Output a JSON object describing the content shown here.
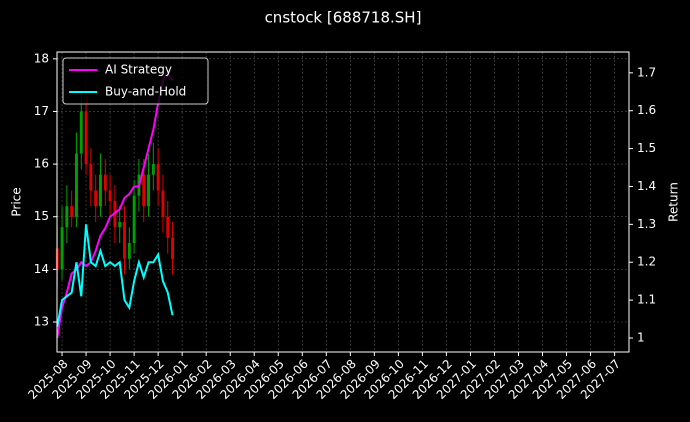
{
  "chart_data": {
    "type": "candlestick",
    "title": "cnstock [688718.SH]",
    "ylabel": "Price",
    "y2label": "Return",
    "x": [
      -0.2,
      0.0,
      0.2,
      0.4,
      0.6,
      0.8,
      1.0,
      1.2,
      1.4,
      1.6,
      1.8,
      2.0,
      2.2,
      2.4,
      2.6,
      2.8,
      3.0,
      3.2,
      3.4,
      3.6,
      3.8,
      4.0,
      4.2,
      4.4,
      4.6
    ],
    "open": [
      14.4,
      14.0,
      14.8,
      15.2,
      15.0,
      16.2,
      17.0,
      16.0,
      15.5,
      15.2,
      15.8,
      15.5,
      15.3,
      14.8,
      14.9,
      14.2,
      14.5,
      15.4,
      15.8,
      15.2,
      15.8,
      16.0,
      15.5,
      15.0,
      14.6
    ],
    "high": [
      14.8,
      15.2,
      15.6,
      15.5,
      16.6,
      17.4,
      17.3,
      16.3,
      15.8,
      16.2,
      16.1,
      15.8,
      15.6,
      15.2,
      15.2,
      14.8,
      15.7,
      16.1,
      16.1,
      16.2,
      16.4,
      16.3,
      15.8,
      15.3,
      14.9
    ],
    "low": [
      13.7,
      13.8,
      14.5,
      14.8,
      14.8,
      15.9,
      15.8,
      15.2,
      14.9,
      15.0,
      15.2,
      15.0,
      14.5,
      14.5,
      13.9,
      14.0,
      14.3,
      15.1,
      14.9,
      15.0,
      15.5,
      15.2,
      14.7,
      14.3,
      13.9
    ],
    "close": [
      14.0,
      14.8,
      15.2,
      15.0,
      16.2,
      17.0,
      16.0,
      15.5,
      15.2,
      15.8,
      15.5,
      15.3,
      14.8,
      14.9,
      14.2,
      14.5,
      15.4,
      15.8,
      15.2,
      15.8,
      16.0,
      15.5,
      15.0,
      14.6,
      14.2
    ],
    "up_color": "#00a000",
    "down_color": "#e00000",
    "series": [
      {
        "name": "AI Strategy",
        "color": "#ff00ff",
        "axis": "y2",
        "values": [
          1.0,
          1.08,
          1.12,
          1.17,
          1.18,
          1.2,
          1.19,
          1.2,
          1.23,
          1.27,
          1.29,
          1.32,
          1.33,
          1.34,
          1.37,
          1.38,
          1.4,
          1.4,
          1.45,
          1.5,
          1.55,
          1.62,
          1.68,
          1.7,
          1.68
        ]
      },
      {
        "name": "Buy-and-Hold",
        "color": "#00ffff",
        "axis": "y2",
        "values": [
          1.03,
          1.1,
          1.11,
          1.12,
          1.2,
          1.11,
          1.3,
          1.2,
          1.19,
          1.23,
          1.19,
          1.2,
          1.19,
          1.2,
          1.1,
          1.08,
          1.15,
          1.2,
          1.16,
          1.2,
          1.2,
          1.22,
          1.15,
          1.12,
          1.06
        ]
      }
    ],
    "xlim": [
      -0.21,
      23.6
    ],
    "xticks": [
      {
        "value": 0,
        "label": "2025-08"
      },
      {
        "value": 1,
        "label": "2025-09"
      },
      {
        "value": 2,
        "label": "2025-10"
      },
      {
        "value": 3,
        "label": "2025-11"
      },
      {
        "value": 4,
        "label": "2025-12"
      },
      {
        "value": 5,
        "label": "2026-01"
      },
      {
        "value": 6,
        "label": "2026-02"
      },
      {
        "value": 7,
        "label": "2026-03"
      },
      {
        "value": 8,
        "label": "2026-04"
      },
      {
        "value": 9,
        "label": "2026-05"
      },
      {
        "value": 10,
        "label": "2026-06"
      },
      {
        "value": 11,
        "label": "2026-07"
      },
      {
        "value": 12,
        "label": "2026-08"
      },
      {
        "value": 13,
        "label": "2026-09"
      },
      {
        "value": 14,
        "label": "2026-10"
      },
      {
        "value": 15,
        "label": "2026-11"
      },
      {
        "value": 16,
        "label": "2026-12"
      },
      {
        "value": 17,
        "label": "2027-01"
      },
      {
        "value": 18,
        "label": "2027-02"
      },
      {
        "value": 19,
        "label": "2027-03"
      },
      {
        "value": 20,
        "label": "2027-04"
      },
      {
        "value": 21,
        "label": "2027-05"
      },
      {
        "value": 22,
        "label": "2027-06"
      },
      {
        "value": 23,
        "label": "2027-07"
      }
    ],
    "ylim": [
      12.43,
      18.13
    ],
    "yticks": [
      13,
      14,
      15,
      16,
      17,
      18
    ],
    "y2lim": [
      0.963,
      1.755
    ],
    "y2ticks": [
      1.0,
      {
        "value": 1.1,
        "label": "1.1"
      },
      1.2,
      1.3,
      1.4,
      1.5,
      1.6,
      1.7
    ],
    "grid": true,
    "legend": "upper-left"
  }
}
